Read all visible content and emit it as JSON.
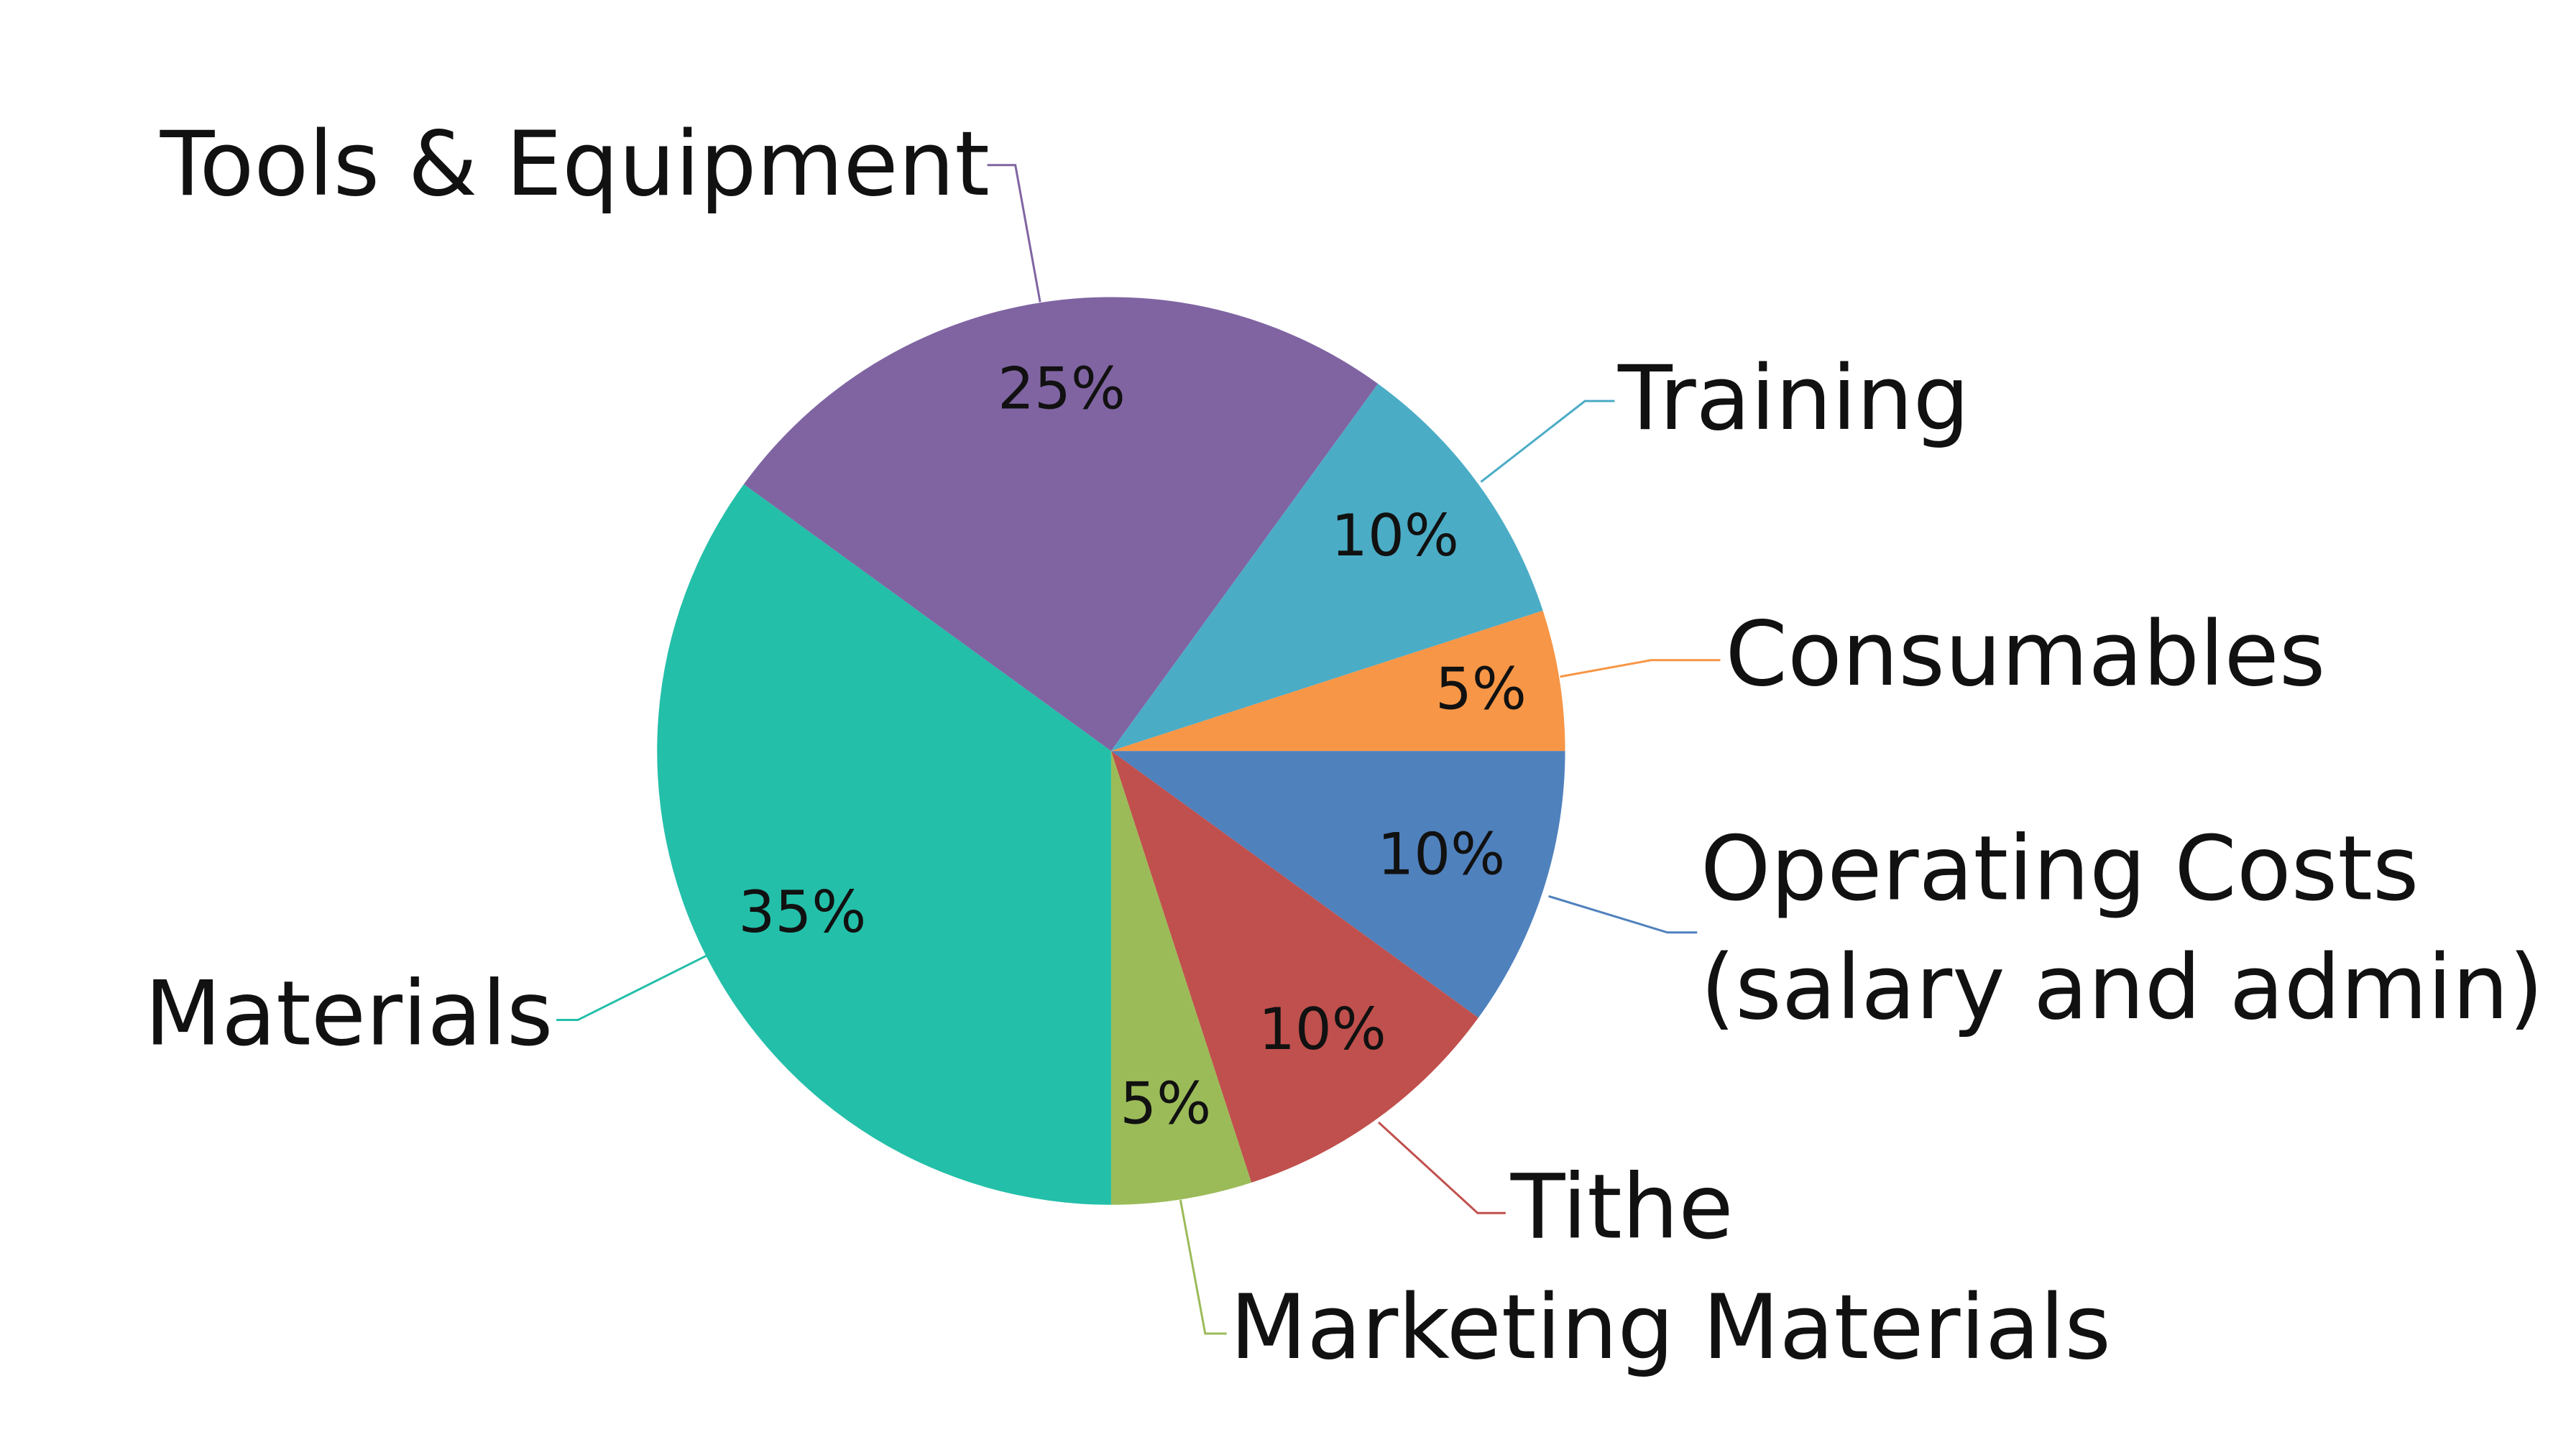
{
  "chart_data": {
    "type": "pie",
    "categories": [
      "Operating Costs\n(salary and admin)",
      "Tithe",
      "Marketing Materials",
      "Materials",
      "Tools & Equipment",
      "Training",
      "Consumables"
    ],
    "values": [
      10,
      10,
      5,
      35,
      25,
      10,
      5
    ],
    "value_labels": [
      "10%",
      "10%",
      "5%",
      "35%",
      "25%",
      "10%",
      "5%"
    ],
    "colors": [
      "#4f81bd",
      "#c0504d",
      "#9bbb59",
      "#23bfa9",
      "#8064a2",
      "#4bacc6",
      "#f79646"
    ]
  }
}
